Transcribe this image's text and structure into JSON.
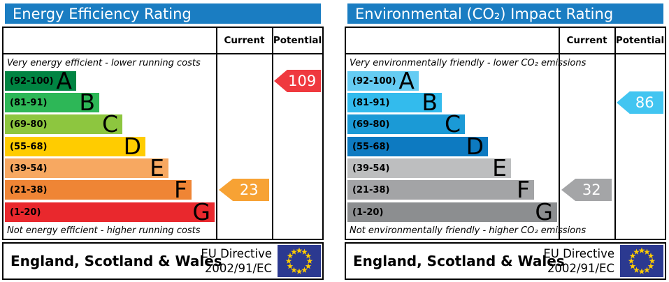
{
  "charts": [
    {
      "title": "Energy Efficiency Rating",
      "columns": {
        "current": "Current",
        "potential": "Potential"
      },
      "top_note": "Very energy efficient - lower running costs",
      "bottom_note": "Not energy efficient - higher running costs",
      "bands": [
        {
          "grade": "A",
          "range": "(92-100)",
          "color": "#008442"
        },
        {
          "grade": "B",
          "range": "(81-91)",
          "color": "#2db757"
        },
        {
          "grade": "C",
          "range": "(69-80)",
          "color": "#8dc63f"
        },
        {
          "grade": "D",
          "range": "(55-68)",
          "color": "#ffcc00"
        },
        {
          "grade": "E",
          "range": "(39-54)",
          "color": "#f7a861"
        },
        {
          "grade": "F",
          "range": "(21-38)",
          "color": "#ef8535"
        },
        {
          "grade": "G",
          "range": "(1-20)",
          "color": "#e9282d"
        }
      ],
      "current": {
        "value": "23",
        "row": 5,
        "color": "#f7a234"
      },
      "potential": {
        "value": "109",
        "row": 0,
        "color": "#ef393f"
      },
      "footer": {
        "region": "England, Scotland & Wales",
        "directive_line1": "EU Directive",
        "directive_line2": "2002/91/EC"
      }
    },
    {
      "title": "Environmental (CO₂) Impact Rating",
      "columns": {
        "current": "Current",
        "potential": "Potential"
      },
      "top_note": "Very environmentally friendly - lower CO₂ emissions",
      "bottom_note": "Not environmentally friendly - higher CO₂ emissions",
      "bands": [
        {
          "grade": "A",
          "range": "(92-100)",
          "color": "#65ccf3"
        },
        {
          "grade": "B",
          "range": "(81-91)",
          "color": "#33bbed"
        },
        {
          "grade": "C",
          "range": "(69-80)",
          "color": "#1b9ad6"
        },
        {
          "grade": "D",
          "range": "(55-68)",
          "color": "#0d7ac1"
        },
        {
          "grade": "E",
          "range": "(39-54)",
          "color": "#bdbebf"
        },
        {
          "grade": "F",
          "range": "(21-38)",
          "color": "#a3a4a6"
        },
        {
          "grade": "G",
          "range": "(1-20)",
          "color": "#8c8e90"
        }
      ],
      "current": {
        "value": "32",
        "row": 5,
        "color": "#a4a5a7"
      },
      "potential": {
        "value": "86",
        "row": 1,
        "color": "#42c5f1"
      },
      "footer": {
        "region": "England, Scotland & Wales",
        "directive_line1": "EU Directive",
        "directive_line2": "2002/91/EC"
      }
    }
  ],
  "colors": {
    "header_bg": "#1a7dc2",
    "eu_flag_bg": "#2b3990",
    "eu_star": "#ffcc00"
  },
  "chart_data": [
    {
      "type": "bar",
      "title": "Energy Efficiency Rating",
      "categories": [
        "A (92-100)",
        "B (81-91)",
        "C (69-80)",
        "D (55-68)",
        "E (39-54)",
        "F (21-38)",
        "G (1-20)"
      ],
      "series": [
        {
          "name": "Current",
          "value": 23,
          "band": "F"
        },
        {
          "name": "Potential",
          "value": 109,
          "band": "A"
        }
      ],
      "top_annotation": "Very energy efficient - lower running costs",
      "bottom_annotation": "Not energy efficient - higher running costs",
      "region": "England, Scotland & Wales",
      "directive": "EU Directive 2002/91/EC"
    },
    {
      "type": "bar",
      "title": "Environmental (CO₂) Impact Rating",
      "categories": [
        "A (92-100)",
        "B (81-91)",
        "C (69-80)",
        "D (55-68)",
        "E (39-54)",
        "F (21-38)",
        "G (1-20)"
      ],
      "series": [
        {
          "name": "Current",
          "value": 32,
          "band": "F"
        },
        {
          "name": "Potential",
          "value": 86,
          "band": "B"
        }
      ],
      "top_annotation": "Very environmentally friendly - lower CO₂ emissions",
      "bottom_annotation": "Not environmentally friendly - higher CO₂ emissions",
      "region": "England, Scotland & Wales",
      "directive": "EU Directive 2002/91/EC"
    }
  ]
}
